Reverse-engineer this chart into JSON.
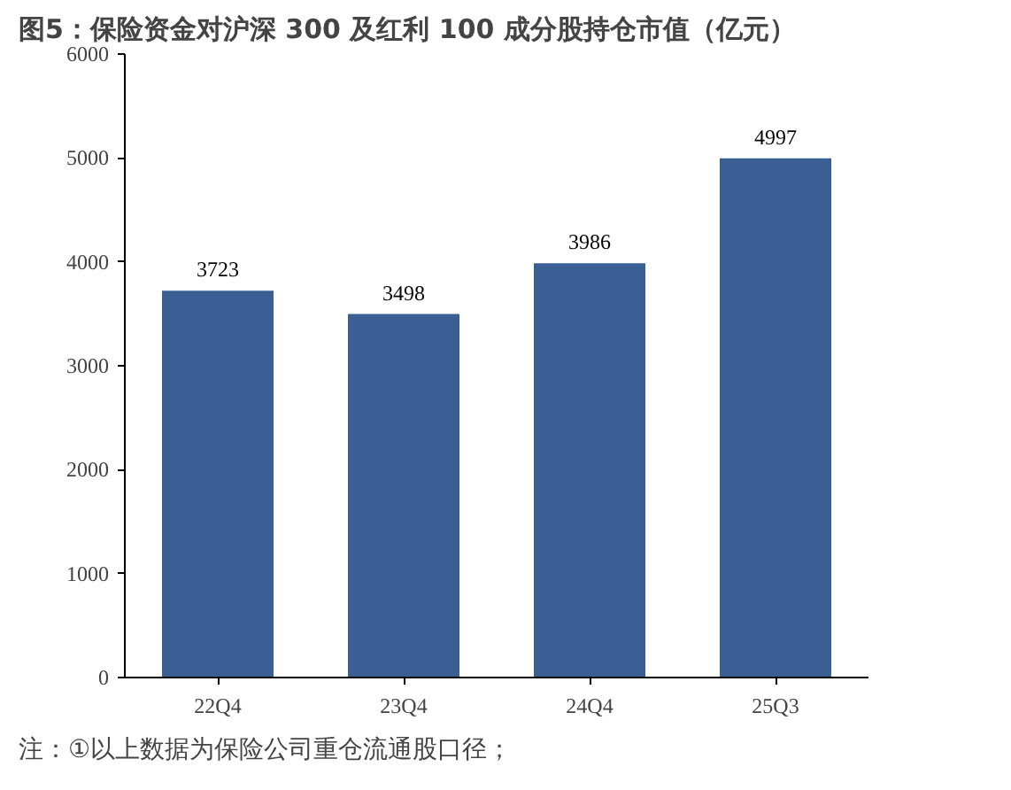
{
  "chart_data": {
    "type": "bar",
    "title": "图5：保险资金对沪深 300 及红利 100 成分股持仓市值（亿元）",
    "categories": [
      "22Q4",
      "23Q4",
      "24Q4",
      "25Q3"
    ],
    "values": [
      3723,
      3498,
      3986,
      4997
    ],
    "color": "#3a5f94",
    "ylim": [
      0,
      6000
    ],
    "yticks": [
      0,
      1000,
      2000,
      3000,
      4000,
      5000,
      6000
    ],
    "grid": false,
    "data_labels": true,
    "annotations": [
      "注：①以上数据为保险公司重仓流通股口径；"
    ]
  }
}
